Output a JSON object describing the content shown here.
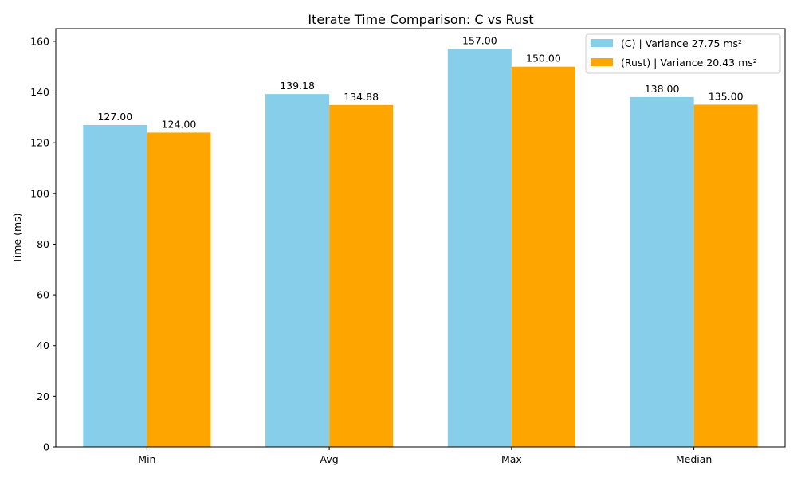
{
  "chart_data": {
    "type": "bar",
    "title": "Iterate Time Comparison: C vs Rust",
    "xlabel": "",
    "ylabel": "Time (ms)",
    "ylim": [
      0,
      165
    ],
    "yticks": [
      0,
      20,
      40,
      60,
      80,
      100,
      120,
      140,
      160
    ],
    "categories": [
      "Min",
      "Avg",
      "Max",
      "Median"
    ],
    "series": [
      {
        "name": "(C) | Variance  27.75 ms²",
        "color": "#87ceeb",
        "values": [
          127.0,
          139.18,
          157.0,
          138.0
        ],
        "labels": [
          "127.00",
          "139.18",
          "157.00",
          "138.00"
        ]
      },
      {
        "name": "(Rust) | Variance  20.43 ms²",
        "color": "#ffa500",
        "values": [
          124.0,
          134.88,
          150.0,
          135.0
        ],
        "labels": [
          "124.00",
          "134.88",
          "150.00",
          "135.00"
        ]
      }
    ],
    "grid": false,
    "legend_position": "top-right"
  }
}
